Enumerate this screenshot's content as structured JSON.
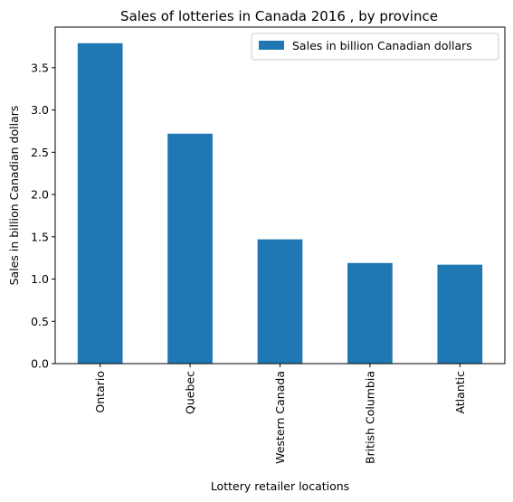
{
  "chart_data": {
    "type": "bar",
    "title": "Sales of lotteries in Canada 2016 , by province",
    "xlabel": "Lottery retailer locations",
    "ylabel": "Sales in billion Canadian dollars",
    "categories": [
      "Ontario",
      "Quebec",
      "Western Canada",
      "British Columbia",
      "Atlantic"
    ],
    "series": [
      {
        "name": "Sales in billion Canadian dollars",
        "values": [
          3.79,
          2.72,
          1.47,
          1.19,
          1.17
        ],
        "color": "#1f77b4"
      }
    ],
    "yticks": [
      "0.0",
      "0.5",
      "1.0",
      "1.5",
      "2.0",
      "2.5",
      "3.0",
      "3.5"
    ],
    "ylim": [
      0,
      3.98
    ],
    "grid": false,
    "legend_position": "top-right"
  }
}
